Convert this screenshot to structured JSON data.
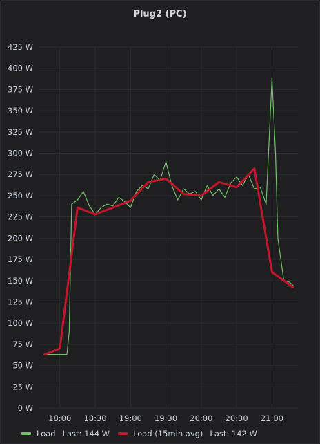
{
  "panel": {
    "title": "Plug2 (PC)"
  },
  "legend": [
    {
      "name": "Load",
      "last_label": "Last: 144 W",
      "color": "#73bf69"
    },
    {
      "name": "Load (15min avg)",
      "last_label": "Last: 142 W",
      "color": "#c4162a"
    }
  ],
  "chart_data": {
    "type": "line",
    "title": "Plug2 (PC)",
    "ylim": [
      0,
      425
    ],
    "yticks": [
      "0 W",
      "25 W",
      "50 W",
      "75 W",
      "100 W",
      "125 W",
      "150 W",
      "175 W",
      "200 W",
      "225 W",
      "250 W",
      "275 W",
      "300 W",
      "325 W",
      "350 W",
      "375 W",
      "400 W",
      "425 W"
    ],
    "xticks": [
      "18:00",
      "18:30",
      "19:00",
      "19:30",
      "20:00",
      "20:30",
      "21:00"
    ],
    "grid": true,
    "legend_position": "bottom",
    "series": [
      {
        "name": "Load",
        "color": "#73bf69",
        "x": [
          "17:47",
          "17:52",
          "17:58",
          "18:03",
          "18:06",
          "18:08",
          "18:10",
          "18:15",
          "18:20",
          "18:25",
          "18:30",
          "18:35",
          "18:40",
          "18:45",
          "18:50",
          "18:55",
          "19:00",
          "19:05",
          "19:10",
          "19:15",
          "19:20",
          "19:25",
          "19:30",
          "19:35",
          "19:40",
          "19:45",
          "19:50",
          "19:55",
          "20:00",
          "20:05",
          "20:10",
          "20:15",
          "20:20",
          "20:25",
          "20:30",
          "20:35",
          "20:40",
          "20:45",
          "20:50",
          "20:55",
          "21:00",
          "21:03",
          "21:05",
          "21:10",
          "21:15",
          "21:18"
        ],
        "values": [
          63,
          63,
          63,
          63,
          63,
          90,
          240,
          245,
          255,
          238,
          228,
          236,
          240,
          238,
          248,
          243,
          236,
          255,
          262,
          258,
          275,
          268,
          290,
          262,
          245,
          258,
          252,
          255,
          245,
          262,
          250,
          258,
          248,
          265,
          272,
          262,
          275,
          258,
          260,
          240,
          388,
          300,
          200,
          150,
          148,
          144
        ]
      },
      {
        "name": "Load (15min avg)",
        "color": "#c4162a",
        "x": [
          "17:47",
          "18:00",
          "18:15",
          "18:30",
          "18:45",
          "19:00",
          "19:15",
          "19:30",
          "19:45",
          "20:00",
          "20:15",
          "20:30",
          "20:45",
          "21:00",
          "21:18"
        ],
        "values": [
          63,
          70,
          236,
          228,
          236,
          244,
          266,
          270,
          252,
          250,
          266,
          260,
          282,
          160,
          142
        ]
      }
    ]
  }
}
